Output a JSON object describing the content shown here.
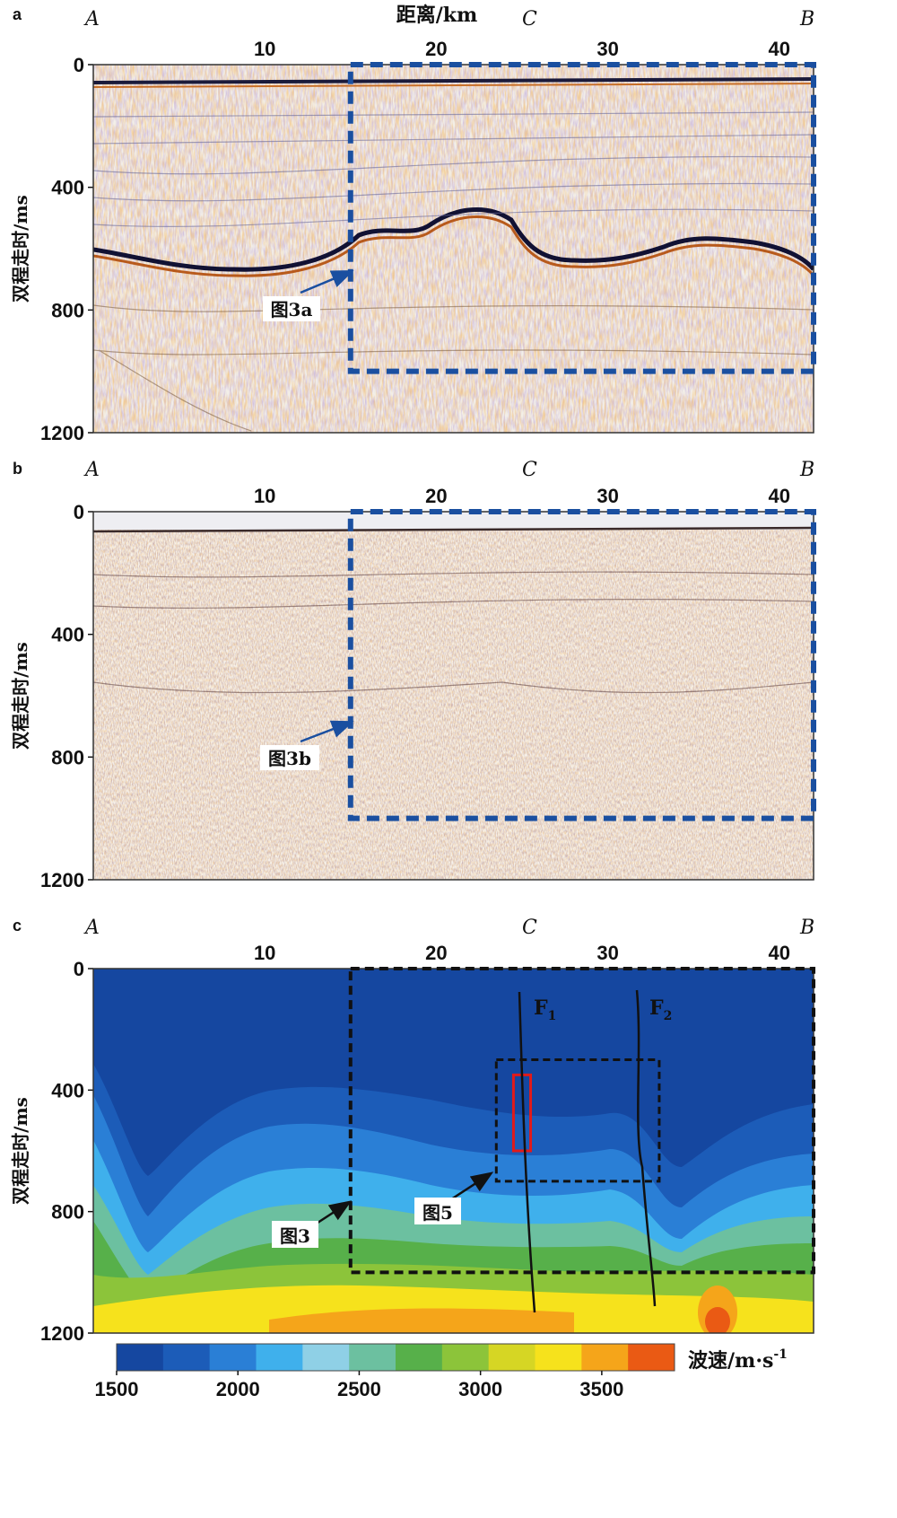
{
  "figure": {
    "x_axis_title": "距离/km",
    "y_axis_title": "双程走时/ms",
    "x_ticks": [
      10,
      20,
      30,
      40
    ],
    "y_ticks": [
      0,
      400,
      800,
      1200
    ],
    "x_range_km": [
      0,
      42
    ],
    "y_range_ms": [
      0,
      1200
    ],
    "profile_points": [
      {
        "label": "A",
        "km": 0
      },
      {
        "label": "C",
        "km": 25
      },
      {
        "label": "B",
        "km": 41.5
      }
    ]
  },
  "panels": [
    {
      "panel_label": "a",
      "type": "seismic-section",
      "box": {
        "km": [
          15,
          42
        ],
        "ms": [
          0,
          1000
        ],
        "color": "#1a4fa0"
      },
      "callout": "图3a"
    },
    {
      "panel_label": "b",
      "type": "seismic-section",
      "box": {
        "km": [
          15,
          42
        ],
        "ms": [
          0,
          1000
        ],
        "color": "#1a4fa0"
      },
      "callout": "图3b"
    },
    {
      "panel_label": "c",
      "type": "velocity-model",
      "box": {
        "km": [
          15,
          42
        ],
        "ms": [
          0,
          1000
        ],
        "color": "#111111"
      },
      "inner_box": {
        "km": [
          23.5,
          33
        ],
        "ms": [
          300,
          700
        ]
      },
      "red_box": {
        "km": [
          24.5,
          25.5
        ],
        "ms": [
          350,
          600
        ]
      },
      "callouts": [
        "图3",
        "图5"
      ],
      "faults": [
        {
          "label": "F",
          "subscript": "1"
        },
        {
          "label": "F",
          "subscript": "2"
        }
      ]
    }
  ],
  "colorbar": {
    "title": "波速/m·s",
    "title_sup": "-1",
    "ticks": [
      1500,
      2000,
      2500,
      3000,
      3500
    ],
    "range": [
      1500,
      3800
    ],
    "colors": [
      "#1547a0",
      "#1c5cb8",
      "#2a7fd6",
      "#3fb0ec",
      "#8fd0e6",
      "#6cc0a0",
      "#57b04a",
      "#8cc43a",
      "#d6d624",
      "#f6e21c",
      "#f5a51a",
      "#ea5a14"
    ]
  }
}
